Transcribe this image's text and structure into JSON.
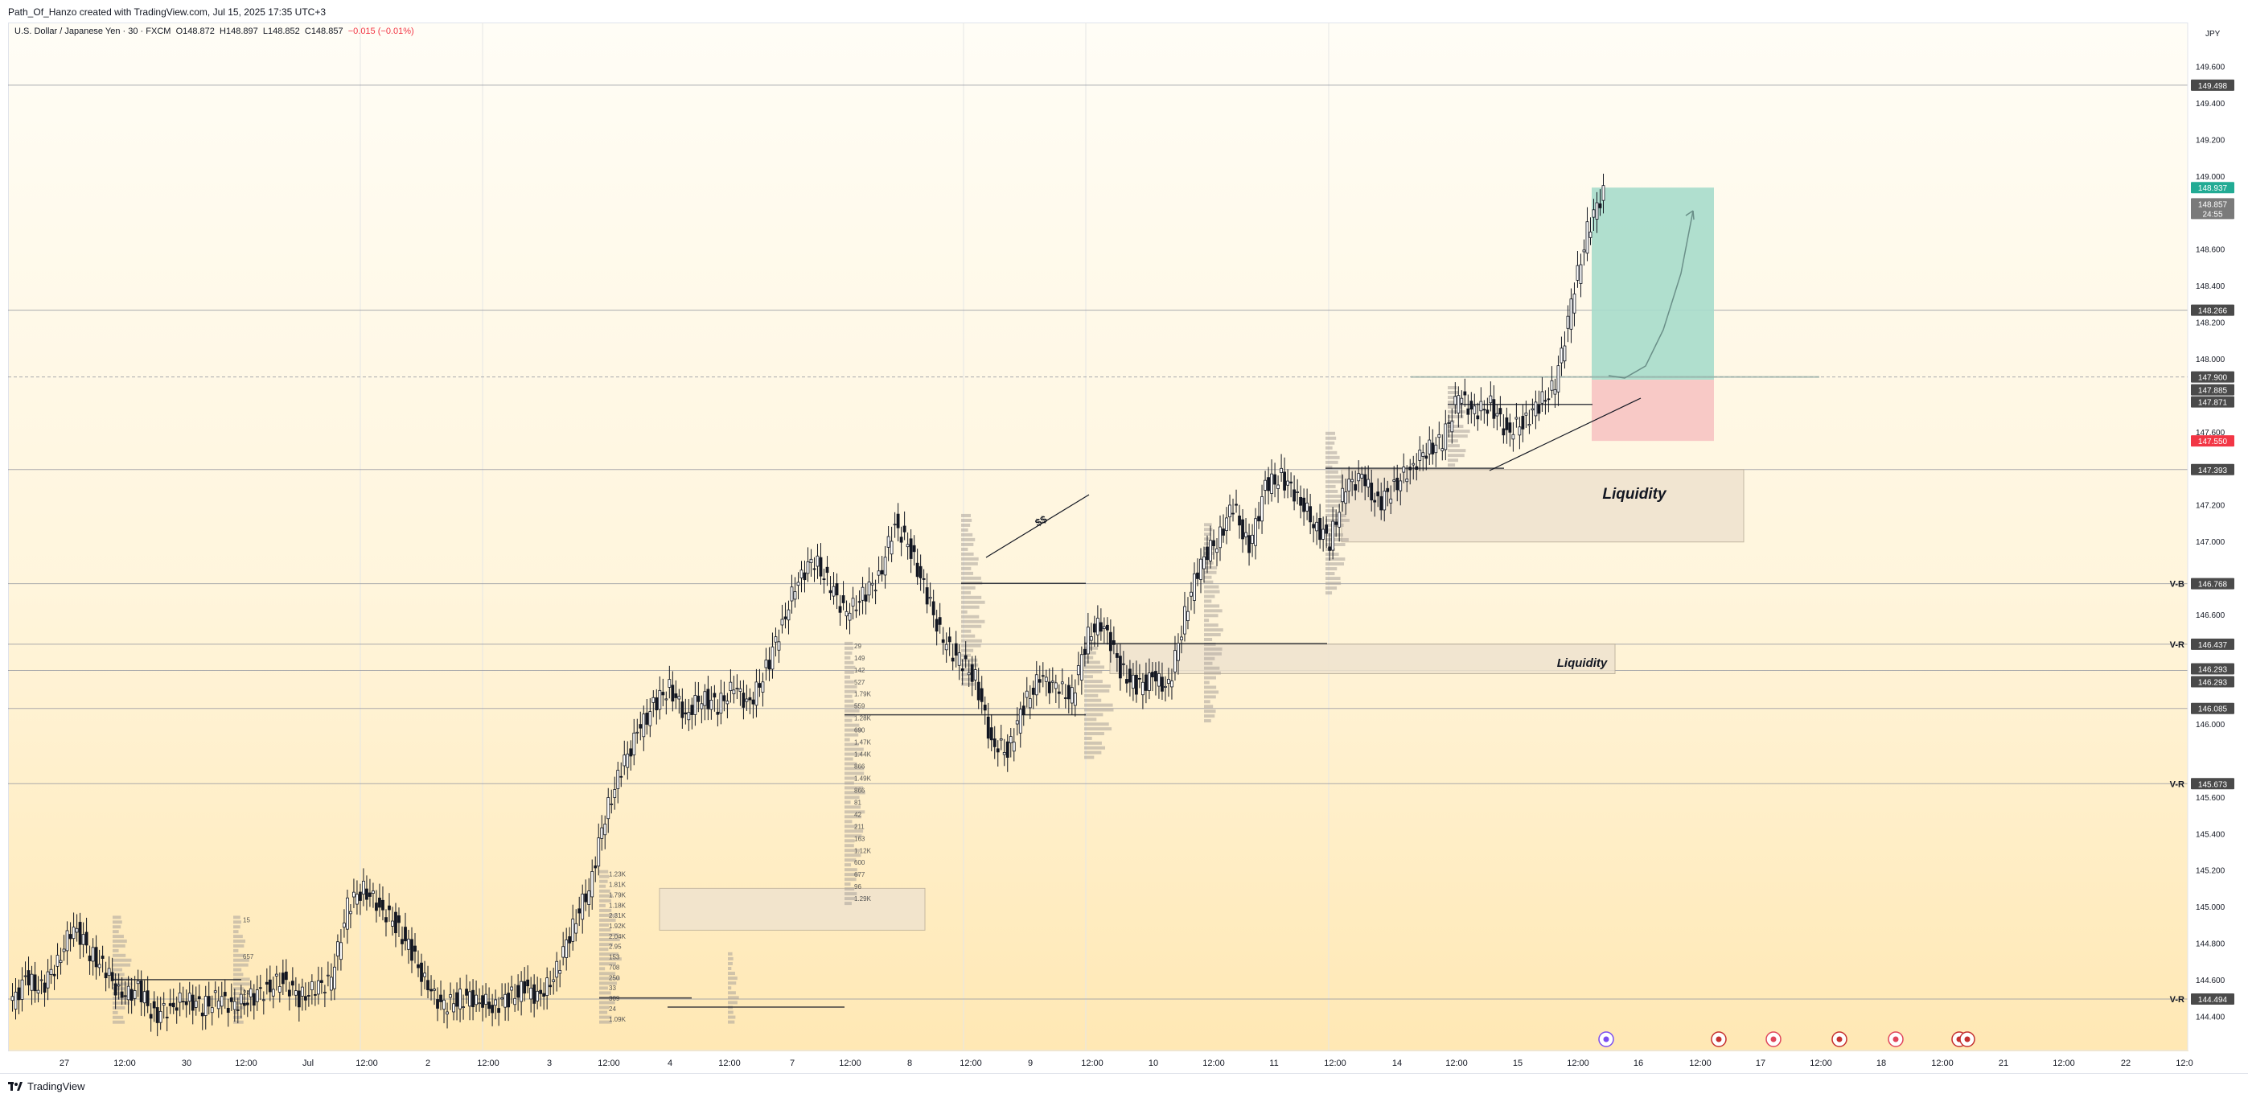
{
  "header": {
    "author": "Path_Of_Hanzo created with TradingView.com, Jul 15, 2025 17:35 UTC+3"
  },
  "legend": {
    "symbol": "U.S. Dollar / Japanese Yen · 30 · FXCM",
    "open": "O148.872",
    "high": "H148.897",
    "low": "L148.852",
    "close": "C148.857",
    "change": "−0.015 (−0.01%)"
  },
  "price_axis": {
    "currency": "JPY",
    "ticks": [
      "149.600",
      "149.400",
      "149.200",
      "149.000",
      "148.600",
      "148.400",
      "148.200",
      "148.000",
      "147.600",
      "147.200",
      "147.000",
      "146.600",
      "146.000",
      "145.600",
      "145.400",
      "145.200",
      "145.000",
      "144.800",
      "144.600",
      "144.400"
    ],
    "tags": [
      {
        "label": "149.498",
        "color": "#4a4a4a"
      },
      {
        "label": "148.937",
        "color": "#22ab94"
      },
      {
        "label": "148.857",
        "color": "#7a7a7a"
      },
      {
        "label": "24:55",
        "color": "#7a7a7a"
      },
      {
        "label": "148.266",
        "color": "#4a4a4a"
      },
      {
        "label": "147.900",
        "color": "#4a4a4a"
      },
      {
        "label": "147.885",
        "color": "#4a4a4a"
      },
      {
        "label": "147.871",
        "color": "#4a4a4a"
      },
      {
        "label": "147.550",
        "color": "#f23645"
      },
      {
        "label": "147.393",
        "color": "#4a4a4a"
      },
      {
        "label": "146.768",
        "color": "#4a4a4a"
      },
      {
        "label": "146.437",
        "color": "#4a4a4a"
      },
      {
        "label": "146.293",
        "color": "#4a4a4a"
      },
      {
        "label": "146.293",
        "color": "#4a4a4a"
      },
      {
        "label": "146.085",
        "color": "#4a4a4a"
      },
      {
        "label": "145.673",
        "color": "#4a4a4a"
      },
      {
        "label": "144.494",
        "color": "#4a4a4a"
      }
    ]
  },
  "time_axis": {
    "ticks": [
      "27",
      "12:00",
      "30",
      "12:00",
      "Jul",
      "12:00",
      "2",
      "12:00",
      "3",
      "12:00",
      "4",
      "12:00",
      "7",
      "12:00",
      "8",
      "12:00",
      "9",
      "12:00",
      "10",
      "12:00",
      "11",
      "12:00",
      "14",
      "12:00",
      "15",
      "12:00",
      "16",
      "12:00",
      "17",
      "12:00",
      "18",
      "12:00",
      "21",
      "12:00",
      "22",
      "12:0"
    ]
  },
  "annotations": {
    "liquidity_upper": "Liquidity",
    "liquidity_lower": "Liquidity",
    "dollar_mark": "$$",
    "line_labels": [
      "V-B",
      "V-R",
      "V-R",
      "V-R"
    ]
  },
  "volume_profile_small_labels": [
    "29",
    "149",
    "142",
    "527",
    "1.79K",
    "559",
    "1.28K",
    "690",
    "1.47K",
    "1.44K",
    "866",
    "1.49K",
    "866",
    "81",
    "42",
    "211",
    "163",
    "1.12K",
    "600",
    "677",
    "96",
    "1.29K",
    "1.23K",
    "1.81K",
    "1.79K",
    "1.18K",
    "2.31K",
    "1.92K",
    "2.04K",
    "2.95",
    "153",
    "708",
    "250",
    "33",
    "309",
    "24",
    "1.09K",
    "15",
    "657",
    "24"
  ],
  "footer": {
    "brand": "TradingView"
  },
  "colors": {
    "target_zone": "#a7dccb",
    "stop_zone": "#f8c6c4",
    "accent_green": "#22ab94",
    "accent_red": "#f23645"
  },
  "chart_data": {
    "type": "candlestick",
    "symbol": "USDJPY",
    "timeframe": "30",
    "ylim": [
      144.3,
      149.7
    ],
    "levels": [
      149.498,
      148.266,
      147.9,
      147.393,
      146.768,
      146.437,
      146.293,
      146.085,
      145.673,
      144.494
    ],
    "position": {
      "entry": 147.885,
      "target": 148.937,
      "stop": 147.55
    },
    "path": [
      [
        0,
        144.45
      ],
      [
        1,
        144.6
      ],
      [
        2,
        144.55
      ],
      [
        3,
        144.7
      ],
      [
        4,
        144.9
      ],
      [
        5,
        144.75
      ],
      [
        6,
        144.65
      ],
      [
        7,
        144.5
      ],
      [
        8,
        144.55
      ],
      [
        9,
        144.4
      ],
      [
        10,
        144.45
      ],
      [
        11,
        144.5
      ],
      [
        12,
        144.45
      ],
      [
        13,
        144.5
      ],
      [
        14,
        144.45
      ],
      [
        15,
        144.5
      ],
      [
        16,
        144.55
      ],
      [
        17,
        144.6
      ],
      [
        18,
        144.5
      ],
      [
        19,
        144.55
      ],
      [
        20,
        144.6
      ],
      [
        21,
        145.0
      ],
      [
        22,
        145.1
      ],
      [
        23,
        145.0
      ],
      [
        24,
        144.9
      ],
      [
        25,
        144.75
      ],
      [
        26,
        144.55
      ],
      [
        27,
        144.45
      ],
      [
        28,
        144.5
      ],
      [
        29,
        144.5
      ],
      [
        30,
        144.45
      ],
      [
        31,
        144.5
      ],
      [
        32,
        144.55
      ],
      [
        33,
        144.5
      ],
      [
        34,
        144.65
      ],
      [
        35,
        144.9
      ],
      [
        36,
        145.1
      ],
      [
        37,
        145.5
      ],
      [
        38,
        145.75
      ],
      [
        39,
        145.95
      ],
      [
        40,
        146.1
      ],
      [
        41,
        146.2
      ],
      [
        42,
        146.05
      ],
      [
        43,
        146.15
      ],
      [
        44,
        146.1
      ],
      [
        45,
        146.2
      ],
      [
        46,
        146.1
      ],
      [
        47,
        146.3
      ],
      [
        48,
        146.55
      ],
      [
        49,
        146.8
      ],
      [
        50,
        146.9
      ],
      [
        51,
        146.75
      ],
      [
        52,
        146.6
      ],
      [
        53,
        146.7
      ],
      [
        54,
        146.8
      ],
      [
        55,
        147.1
      ],
      [
        56,
        146.95
      ],
      [
        57,
        146.7
      ],
      [
        58,
        146.45
      ],
      [
        59,
        146.35
      ],
      [
        60,
        146.25
      ],
      [
        61,
        145.9
      ],
      [
        62,
        145.85
      ],
      [
        63,
        146.1
      ],
      [
        64,
        146.25
      ],
      [
        65,
        146.2
      ],
      [
        66,
        146.15
      ],
      [
        67,
        146.5
      ],
      [
        68,
        146.55
      ],
      [
        69,
        146.3
      ],
      [
        70,
        146.2
      ],
      [
        71,
        146.25
      ],
      [
        72,
        146.2
      ],
      [
        73,
        146.6
      ],
      [
        74,
        146.9
      ],
      [
        75,
        147.0
      ],
      [
        76,
        147.2
      ],
      [
        77,
        146.95
      ],
      [
        78,
        147.3
      ],
      [
        79,
        147.35
      ],
      [
        80,
        147.25
      ],
      [
        81,
        147.1
      ],
      [
        82,
        147.0
      ],
      [
        83,
        147.3
      ],
      [
        84,
        147.35
      ],
      [
        85,
        147.2
      ],
      [
        86,
        147.3
      ],
      [
        87,
        147.4
      ],
      [
        88,
        147.5
      ],
      [
        89,
        147.55
      ],
      [
        90,
        147.8
      ],
      [
        91,
        147.7
      ],
      [
        92,
        147.75
      ],
      [
        93,
        147.6
      ],
      [
        94,
        147.65
      ],
      [
        95,
        147.75
      ],
      [
        96,
        147.85
      ],
      [
        97,
        148.3
      ],
      [
        98,
        148.7
      ],
      [
        99,
        148.92
      ]
    ]
  }
}
